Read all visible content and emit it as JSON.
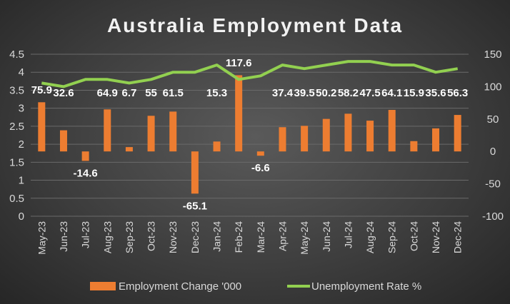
{
  "chart_data": {
    "type": "bar",
    "title": "Australia Employment Data",
    "categories": [
      "May-23",
      "Jun-23",
      "Jul-23",
      "Aug-23",
      "Sep-23",
      "Oct-23",
      "Nov-23",
      "Dec-23",
      "Jan-24",
      "Feb-24",
      "Mar-24",
      "Apr-24",
      "May-24",
      "Jun-24",
      "Jul-24",
      "Aug-24",
      "Sep-24",
      "Oct-24",
      "Nov-24",
      "Dec-24"
    ],
    "series": [
      {
        "name": "Employment Change '000",
        "type": "bar",
        "axis": "right",
        "color": "#ed7d31",
        "values": [
          75.9,
          32.6,
          -14.6,
          64.9,
          6.7,
          55,
          61.5,
          -65.1,
          15.3,
          117.6,
          -6.6,
          37.4,
          39.5,
          50.2,
          58.2,
          47.5,
          64.1,
          15.9,
          35.6,
          56.3
        ],
        "labels": [
          "75.9",
          "32.6",
          "-14.6",
          "64.9",
          "6.7",
          "55",
          "61.5",
          "-65.1",
          "15.3",
          "117.6",
          "-6.6",
          "37.4",
          "39.5",
          "50.2",
          "58.2",
          "47.5",
          "64.1",
          "15.9",
          "35.6",
          "56.3"
        ]
      },
      {
        "name": "Unemployment Rate %",
        "type": "line",
        "axis": "left",
        "color": "#92d050",
        "values": [
          3.7,
          3.6,
          3.8,
          3.8,
          3.7,
          3.8,
          4.0,
          4.0,
          4.2,
          3.8,
          3.9,
          4.2,
          4.1,
          4.2,
          4.3,
          4.3,
          4.2,
          4.2,
          4.0,
          4.1
        ]
      }
    ],
    "y_left": {
      "min": 0,
      "max": 4.5,
      "ticks": [
        "0",
        "0.5",
        "1",
        "1.5",
        "2",
        "2.5",
        "3",
        "3.5",
        "4",
        "4.5"
      ]
    },
    "y_right": {
      "min": -100,
      "max": 150,
      "ticks": [
        "-100",
        "-50",
        "0",
        "50",
        "100",
        "150"
      ]
    },
    "grid": true,
    "legend": "bottom",
    "background": "#3e3e3e"
  }
}
